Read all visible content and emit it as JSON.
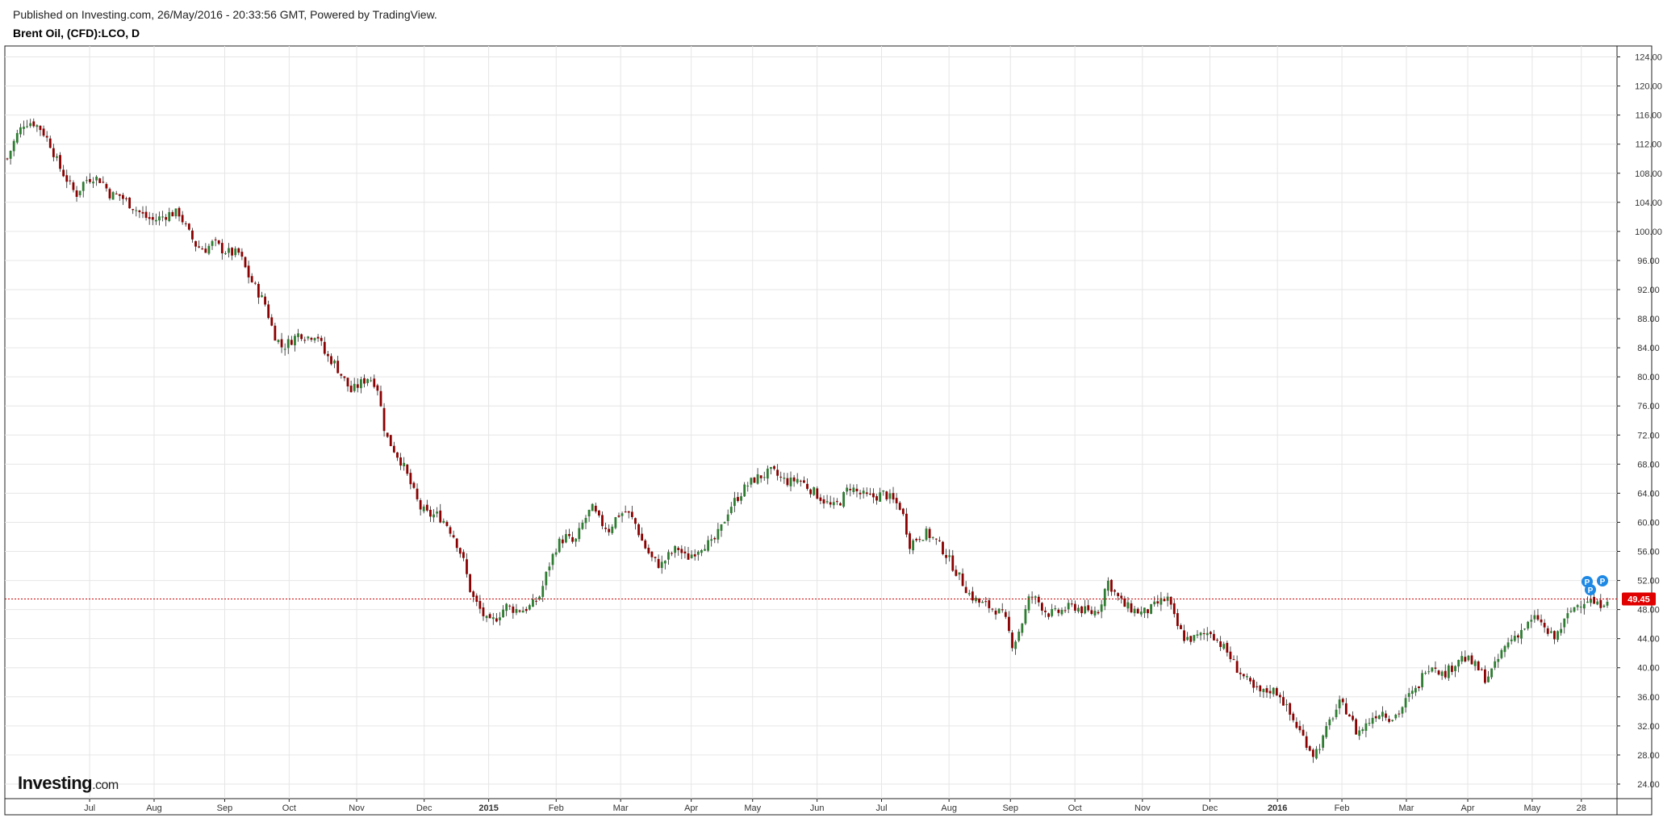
{
  "header": {
    "published": "Published on Investing.com, 26/May/2016 - 20:33:56 GMT, Powered by TradingView.",
    "symbol": "Brent Oil, (CFD):LCO, D"
  },
  "logo": {
    "brand": "Investing",
    "suffix": ".com"
  },
  "colors": {
    "up": "#2e7d32",
    "down": "#8b0000",
    "wick": "#222222",
    "grid": "#e6e6e6",
    "last_price_line": "#cc0000",
    "last_price_badge": "#e00000",
    "marker": "#1e88e5"
  },
  "chart_data": {
    "type": "candlestick",
    "timeframe": "D",
    "x_ticks": [
      "Jul",
      "Aug",
      "Sep",
      "Oct",
      "Nov",
      "Dec",
      "2015",
      "Feb",
      "Mar",
      "Apr",
      "May",
      "Jun",
      "Jul",
      "Aug",
      "Sep",
      "Oct",
      "Nov",
      "Dec",
      "2016",
      "Feb",
      "Mar",
      "Apr",
      "May",
      "28"
    ],
    "x_ticks_bold": [
      "2015",
      "2016"
    ],
    "y_ticks": [
      "24.00",
      "28.00",
      "32.00",
      "36.00",
      "40.00",
      "44.00",
      "48.00",
      "52.00",
      "56.00",
      "60.00",
      "64.00",
      "68.00",
      "72.00",
      "76.00",
      "80.00",
      "84.00",
      "88.00",
      "92.00",
      "96.00",
      "100.00",
      "104.00",
      "108.00",
      "112.00",
      "116.00",
      "120.00",
      "124.00"
    ],
    "ylim": [
      22,
      125.5
    ],
    "last_price": "49.45",
    "markers": [
      "P",
      "P",
      "P"
    ],
    "closes": [
      110,
      113,
      115,
      115,
      114,
      112,
      109,
      107,
      105,
      107,
      107.5,
      107,
      105,
      105,
      104,
      103,
      102,
      101.5,
      102,
      102.5,
      102.5,
      100,
      98,
      97.5,
      98.5,
      97.5,
      97,
      97,
      94,
      92,
      90,
      86,
      84,
      85,
      86,
      85.5,
      86,
      83,
      82,
      80,
      78,
      79,
      80,
      79,
      72,
      70,
      68,
      65,
      62,
      61,
      61,
      60,
      58,
      55,
      50,
      48,
      46,
      47,
      48.5,
      48,
      48,
      48.5,
      50,
      54,
      57,
      58,
      57,
      60,
      62,
      60,
      59,
      61,
      61.5,
      60,
      57,
      55,
      54,
      55.5,
      56.5,
      55,
      56,
      57,
      57,
      59,
      62,
      63.5,
      65,
      66,
      66.5,
      67,
      66,
      65.5,
      66,
      65,
      64,
      63,
      62,
      63,
      65,
      64,
      63.5,
      63.5,
      64,
      63,
      62,
      57,
      58,
      58.5,
      57.5,
      56,
      54,
      52,
      50,
      49,
      48.5,
      48,
      47,
      43,
      46,
      50,
      49,
      47.5,
      47.5,
      48,
      48.5,
      48,
      47.5,
      48,
      52,
      50,
      48.5,
      48,
      47.5,
      48,
      49,
      49.5,
      46,
      44,
      44,
      44.5,
      45,
      43.5,
      42,
      40,
      38.5,
      37,
      36.5,
      37,
      36.5,
      34,
      32,
      30,
      28,
      30,
      33,
      35,
      34,
      31,
      32,
      33.5,
      34,
      33,
      34,
      36,
      37,
      40,
      40.5,
      39,
      40,
      41.5,
      41,
      40,
      38.5,
      40,
      42.5,
      44,
      45,
      46,
      47,
      45,
      44,
      46,
      48,
      49,
      49.5,
      48.5,
      49.45
    ]
  }
}
